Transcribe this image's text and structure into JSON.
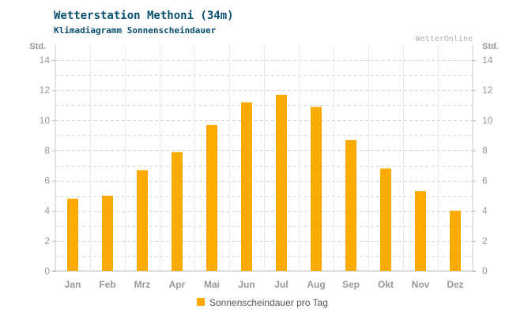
{
  "header": {
    "title": "Wetterstation Methoni (34m)",
    "subtitle": "Klimadiagramm Sonnenscheindauer",
    "source": "WetterOnline"
  },
  "colors": {
    "bar": "#ffaa00",
    "title": "#0a4f6e",
    "axis_text": "#999999",
    "grid": "#d8d8d8"
  },
  "chart_data": {
    "type": "bar",
    "categories": [
      "Jan",
      "Feb",
      "Mrz",
      "Apr",
      "Mai",
      "Jun",
      "Jul",
      "Aug",
      "Sep",
      "Okt",
      "Nov",
      "Dez"
    ],
    "series": [
      {
        "name": "Sonnenscheindauer pro Tag",
        "values": [
          4.8,
          5.0,
          6.7,
          7.9,
          9.7,
          11.2,
          11.7,
          10.9,
          8.7,
          6.8,
          5.3,
          4.0
        ]
      }
    ],
    "ylabel": "Std.",
    "ylabel_right": "Std.",
    "ylim": [
      0,
      15
    ],
    "yticks": [
      0,
      2,
      4,
      6,
      8,
      10,
      12,
      14
    ],
    "grid": true,
    "legend": "bottom-center"
  }
}
